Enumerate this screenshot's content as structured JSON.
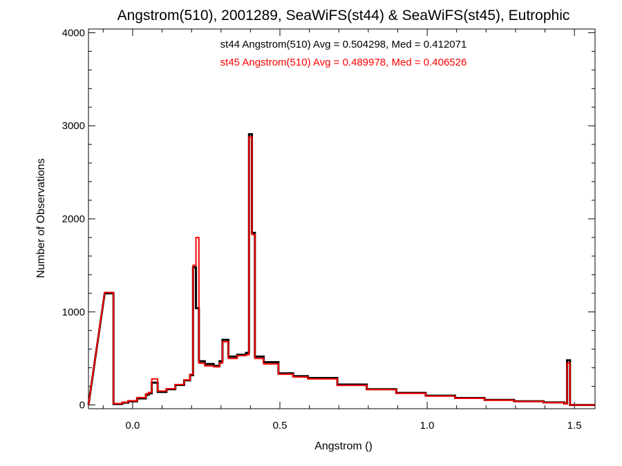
{
  "chart_data": {
    "type": "line",
    "style": "histogram-step",
    "title": "Angstrom(510), 2001289, SeaWiFS(st44) & SeaWiFS(st45), Eutrophic",
    "xlabel": "Angstrom ()",
    "ylabel": "Number of Observations",
    "xlim": [
      -0.15,
      1.57
    ],
    "ylim": [
      -40,
      4040
    ],
    "x_ticks": [
      "0.0",
      "0.5",
      "1.0",
      "1.5"
    ],
    "y_ticks": [
      "0",
      "1000",
      "2000",
      "3000",
      "4000"
    ],
    "annotations": [
      {
        "text": "st44 Angstrom(510) Avg = 0.504298, Med = 0.412071",
        "color": "#000000"
      },
      {
        "text": "st45 Angstrom(510) Avg = 0.489978, Med = 0.406526",
        "color": "#ff0000"
      }
    ],
    "bin_width": 0.01,
    "series": [
      {
        "color": "#000000",
        "x": [
          -0.09,
          -0.06,
          -0.03,
          -0.01,
          0.02,
          0.05,
          0.06,
          0.07,
          0.09,
          0.12,
          0.15,
          0.18,
          0.2,
          0.21,
          0.22,
          0.23,
          0.25,
          0.28,
          0.3,
          0.31,
          0.33,
          0.36,
          0.39,
          0.4,
          0.41,
          0.42,
          0.45,
          0.5,
          0.55,
          0.6,
          0.7,
          0.8,
          0.9,
          1.0,
          1.1,
          1.2,
          1.3,
          1.4,
          1.47,
          1.48,
          1.49
        ],
        "y": [
          1200,
          10,
          25,
          40,
          70,
          110,
          125,
          240,
          140,
          170,
          215,
          265,
          320,
          1480,
          1040,
          470,
          440,
          420,
          470,
          700,
          520,
          540,
          560,
          2910,
          1850,
          520,
          460,
          340,
          310,
          290,
          220,
          170,
          130,
          100,
          75,
          55,
          40,
          28,
          15,
          480,
          0
        ],
        "values_note_visible": "step histogram; values read off y-axis"
      },
      {
        "color": "#ff0000",
        "x": [
          -0.09,
          -0.06,
          -0.03,
          -0.01,
          0.02,
          0.05,
          0.06,
          0.07,
          0.09,
          0.12,
          0.15,
          0.18,
          0.2,
          0.21,
          0.22,
          0.23,
          0.25,
          0.28,
          0.3,
          0.31,
          0.33,
          0.36,
          0.39,
          0.4,
          0.41,
          0.42,
          0.45,
          0.5,
          0.55,
          0.6,
          0.7,
          0.8,
          0.9,
          1.0,
          1.1,
          1.2,
          1.3,
          1.4,
          1.47,
          1.48,
          1.49
        ],
        "y": [
          1210,
          15,
          30,
          45,
          80,
          120,
          135,
          280,
          150,
          175,
          220,
          270,
          330,
          1500,
          1800,
          450,
          420,
          410,
          450,
          680,
          500,
          530,
          540,
          2880,
          1830,
          500,
          440,
          330,
          300,
          280,
          210,
          165,
          125,
          95,
          72,
          52,
          38,
          25,
          12,
          450,
          0
        ]
      }
    ]
  }
}
